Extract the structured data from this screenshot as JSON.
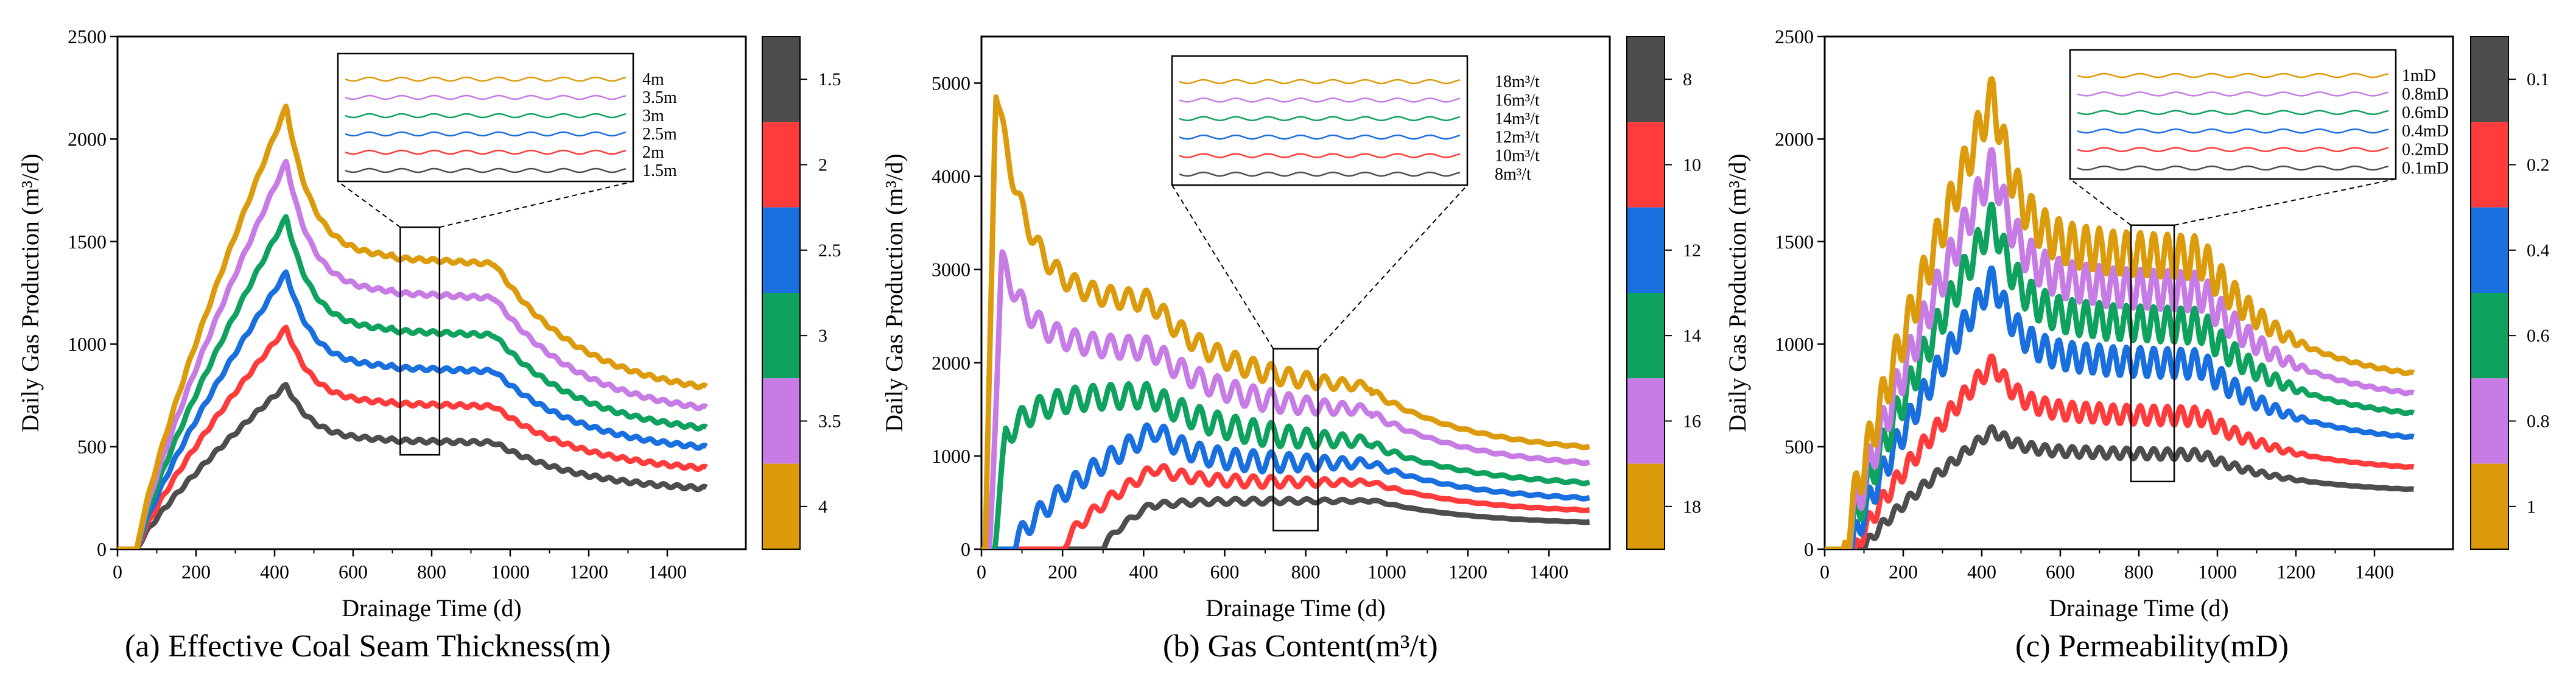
{
  "chart_data": [
    {
      "type": "line",
      "caption": "(a) Effective Coal Seam Thickness(m)",
      "xlabel": "Drainage Time (d)",
      "ylabel": "Daily Gas Production (m³/d)",
      "xlim": [
        0,
        1600
      ],
      "ylim": [
        0,
        2500
      ],
      "xticks": [
        "0",
        "200",
        "400",
        "600",
        "800",
        "1000",
        "1200",
        "1400"
      ],
      "yticks": [
        "0",
        "500",
        "1000",
        "1500",
        "2000",
        "2500"
      ],
      "shape": "smooth",
      "series": [
        {
          "name": "1.5m",
          "color": "#4d4d4d",
          "start": 50,
          "peak_t": 430,
          "peak": 800,
          "plateau_start": 700,
          "plateau_end": 960,
          "plateau": 530,
          "end": 275,
          "osc": 8
        },
        {
          "name": "2m",
          "color": "#ff3b3b",
          "start": 50,
          "peak_t": 430,
          "peak": 1080,
          "plateau_start": 700,
          "plateau_end": 960,
          "plateau": 710,
          "end": 365,
          "osc": 8
        },
        {
          "name": "2.5m",
          "color": "#1a6fdf",
          "start": 50,
          "peak_t": 430,
          "peak": 1350,
          "plateau_start": 700,
          "plateau_end": 960,
          "plateau": 885,
          "end": 460,
          "osc": 8
        },
        {
          "name": "3m",
          "color": "#0fa15e",
          "start": 50,
          "peak_t": 430,
          "peak": 1620,
          "plateau_start": 700,
          "plateau_end": 960,
          "plateau": 1065,
          "end": 545,
          "osc": 8
        },
        {
          "name": "3.5m",
          "color": "#c77be4",
          "start": 50,
          "peak_t": 430,
          "peak": 1890,
          "plateau_start": 700,
          "plateau_end": 960,
          "plateau": 1250,
          "end": 635,
          "osc": 8
        },
        {
          "name": "4m",
          "color": "#dc9b0c",
          "start": 50,
          "peak_t": 430,
          "peak": 2160,
          "plateau_start": 700,
          "plateau_end": 960,
          "plateau": 1420,
          "end": 730,
          "osc": 8
        }
      ],
      "inset_labels": [
        "4m",
        "3.5m",
        "3m",
        "2.5m",
        "2m",
        "1.5m"
      ],
      "zoom_box": {
        "x": [
          720,
          820
        ],
        "y": [
          460,
          1570
        ]
      },
      "colorbar": {
        "labels": [
          "1.5",
          "2",
          "2.5",
          "3",
          "3.5",
          "4"
        ],
        "colors": [
          "#4d4d4d",
          "#ff3b3b",
          "#1a6fdf",
          "#0fa15e",
          "#c77be4",
          "#dc9b0c"
        ]
      }
    },
    {
      "type": "line",
      "caption": "(b) Gas Content(m³/t)",
      "xlabel": "Drainage Time (d)",
      "ylabel": "Daily Gas Production (m³/d)",
      "xlim": [
        0,
        1550
      ],
      "ylim": [
        0,
        5500
      ],
      "xticks": [
        "0",
        "200",
        "400",
        "600",
        "800",
        "1000",
        "1200",
        "1400"
      ],
      "yticks": [
        "0",
        "1000",
        "2000",
        "3000",
        "4000",
        "5000"
      ],
      "shape": "desorption",
      "series": [
        {
          "name": "8m³/t",
          "color": "#4d4d4d",
          "start": 300,
          "early_peak_t": 420,
          "early_peak": 480,
          "mid": 470,
          "plateau_end": 960,
          "plateau": 530,
          "end": 260,
          "osc": 30
        },
        {
          "name": "10m³/t",
          "color": "#ff3b3b",
          "start": 200,
          "early_peak_t": 430,
          "early_peak": 870,
          "mid": 700,
          "plateau_end": 960,
          "plateau": 720,
          "end": 380,
          "osc": 60
        },
        {
          "name": "12m³/t",
          "color": "#1a6fdf",
          "start": 80,
          "early_peak_t": 430,
          "early_peak": 1280,
          "mid": 930,
          "plateau_end": 960,
          "plateau": 920,
          "end": 500,
          "osc": 110
        },
        {
          "name": "14m³/t",
          "color": "#0fa15e",
          "start": 30,
          "early_peak_t": 60,
          "early_peak": 1200,
          "mid": 1650,
          "plateau_end": 960,
          "plateau": 1130,
          "end": 660,
          "osc": 130
        },
        {
          "name": "16m³/t",
          "color": "#c77be4",
          "start": 20,
          "early_peak_t": 50,
          "early_peak": 3100,
          "mid": 2150,
          "plateau_end": 960,
          "plateau": 1460,
          "end": 860,
          "osc": 120
        },
        {
          "name": "18m³/t",
          "color": "#dc9b0c",
          "start": 10,
          "early_peak_t": 35,
          "early_peak": 4980,
          "mid": 2650,
          "plateau_end": 960,
          "plateau": 1700,
          "end": 1020,
          "osc": 110
        }
      ],
      "inset_labels": [
        "18m³/t",
        "16m³/t",
        "14m³/t",
        "12m³/t",
        "10m³/t",
        "8m³/t"
      ],
      "zoom_box": {
        "x": [
          720,
          830
        ],
        "y": [
          200,
          2150
        ]
      },
      "colorbar": {
        "labels": [
          "8",
          "10",
          "12",
          "14",
          "16",
          "18"
        ],
        "colors": [
          "#4d4d4d",
          "#ff3b3b",
          "#1a6fdf",
          "#0fa15e",
          "#c77be4",
          "#dc9b0c"
        ]
      }
    },
    {
      "type": "line",
      "caption": "(c) Permeability(mD)",
      "xlabel": "Drainage Time (d)",
      "ylabel": "Daily Gas Production (m³/d)",
      "xlim": [
        0,
        1600
      ],
      "ylim": [
        0,
        2500
      ],
      "xticks": [
        "0",
        "200",
        "400",
        "600",
        "800",
        "1000",
        "1200",
        "1400"
      ],
      "yticks": [
        "0",
        "500",
        "1000",
        "1500",
        "2000",
        "2500"
      ],
      "shape": "oscillating",
      "series": [
        {
          "name": "0.1mD",
          "color": "#4d4d4d",
          "start": 100,
          "peak_t": 430,
          "peak": 580,
          "plateau_start": 700,
          "plateau_end": 960,
          "plateau": 470,
          "end": 275,
          "osc": 25
        },
        {
          "name": "0.2mD",
          "color": "#ff3b3b",
          "start": 80,
          "peak_t": 430,
          "peak": 910,
          "plateau_start": 700,
          "plateau_end": 960,
          "plateau": 660,
          "end": 375,
          "osc": 45
        },
        {
          "name": "0.4mD",
          "color": "#1a6fdf",
          "start": 70,
          "peak_t": 430,
          "peak": 1320,
          "plateau_start": 700,
          "plateau_end": 960,
          "plateau": 920,
          "end": 510,
          "osc": 70
        },
        {
          "name": "0.6mD",
          "color": "#0fa15e",
          "start": 60,
          "peak_t": 430,
          "peak": 1620,
          "plateau_start": 700,
          "plateau_end": 960,
          "plateau": 1110,
          "end": 620,
          "osc": 85
        },
        {
          "name": "0.8mD",
          "color": "#c77be4",
          "start": 55,
          "peak_t": 430,
          "peak": 1880,
          "plateau_start": 700,
          "plateau_end": 960,
          "plateau": 1280,
          "end": 710,
          "osc": 95
        },
        {
          "name": "1mD",
          "color": "#dc9b0c",
          "start": 50,
          "peak_t": 430,
          "peak": 2220,
          "plateau_start": 700,
          "plateau_end": 960,
          "plateau": 1450,
          "end": 800,
          "osc": 105
        }
      ],
      "inset_labels": [
        "1mD",
        "0.8mD",
        "0.6mD",
        "0.4mD",
        "0.2mD",
        "0.1mD"
      ],
      "zoom_box": {
        "x": [
          780,
          890
        ],
        "y": [
          330,
          1580
        ]
      },
      "colorbar": {
        "labels": [
          "0.1",
          "0.2",
          "0.4",
          "0.6",
          "0.8",
          "1"
        ],
        "colors": [
          "#4d4d4d",
          "#ff3b3b",
          "#1a6fdf",
          "#0fa15e",
          "#c77be4",
          "#dc9b0c"
        ]
      }
    }
  ]
}
